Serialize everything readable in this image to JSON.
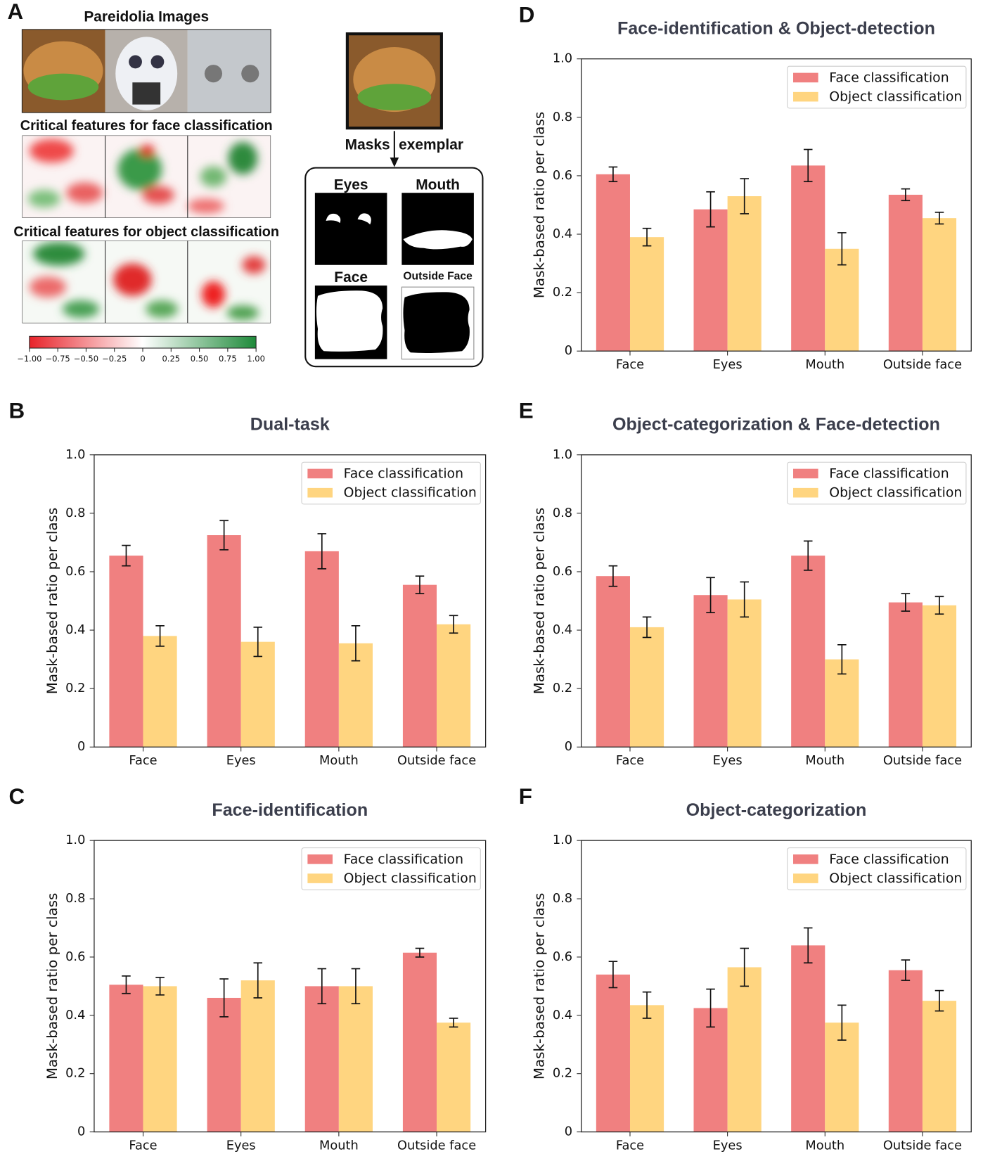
{
  "panel_a": {
    "letter": "A",
    "title": "Pareidolia Images",
    "face_features": "Critical features for face classification",
    "object_features": "Critical features for object classification",
    "colorbar": {
      "xlim": [
        -1,
        1
      ],
      "xticks": [
        {
          "value": -1,
          "label": "−1.00"
        },
        {
          "value": -0.75,
          "label": "−0.75"
        },
        {
          "value": -0.5,
          "label": "−0.50"
        },
        {
          "value": -0.25,
          "label": "−0.25"
        },
        0,
        0.25,
        {
          "value": 0.5,
          "label": "0.50"
        },
        0.75,
        {
          "value": 1,
          "label": "1.00"
        }
      ]
    },
    "masks": {
      "label_left": "Masks",
      "label_right": "exemplar",
      "eyes": "Eyes",
      "mouth": "Mouth",
      "face": "Face",
      "outside_face": "Outside Face"
    }
  },
  "chart_data": [
    {
      "type": "bar",
      "panel": "B",
      "title": "Dual-task",
      "ylabel": "Mask-based ratio per class",
      "categories": [
        "Face",
        "Eyes",
        "Mouth",
        "Outside face"
      ],
      "series": [
        {
          "name": "Face classification",
          "color": "#f08080",
          "values": [
            0.655,
            0.725,
            0.67,
            0.555
          ],
          "errors": [
            0.035,
            0.05,
            0.06,
            0.03
          ]
        },
        {
          "name": "Object classification",
          "color": "#ffd580",
          "values": [
            0.38,
            0.36,
            0.355,
            0.42
          ],
          "errors": [
            0.035,
            0.05,
            0.06,
            0.03
          ]
        }
      ],
      "ylim": [
        0,
        1
      ],
      "yticks": [
        0,
        0.2,
        0.4,
        0.6,
        0.8,
        {
          "value": 1,
          "label": "1.0"
        }
      ],
      "grid": false,
      "legend": "upper right"
    },
    {
      "type": "bar",
      "panel": "C",
      "title": "Face-identification",
      "ylabel": "Mask-based ratio per class",
      "categories": [
        "Face",
        "Eyes",
        "Mouth",
        "Outside face"
      ],
      "series": [
        {
          "name": "Face classification",
          "color": "#f08080",
          "values": [
            0.505,
            0.46,
            0.5,
            0.615
          ],
          "errors": [
            0.03,
            0.065,
            0.06,
            0.015
          ]
        },
        {
          "name": "Object classification",
          "color": "#ffd580",
          "values": [
            0.5,
            0.52,
            0.5,
            0.375
          ],
          "errors": [
            0.03,
            0.06,
            0.06,
            0.015
          ]
        }
      ],
      "ylim": [
        0,
        1
      ],
      "yticks": [
        0,
        0.2,
        0.4,
        0.6,
        0.8,
        {
          "value": 1,
          "label": "1.0"
        }
      ],
      "grid": false,
      "legend": "upper right"
    },
    {
      "type": "bar",
      "panel": "D",
      "title": "Face-identification & Object-detection",
      "ylabel": "Mask-based ratio per class",
      "categories": [
        "Face",
        "Eyes",
        "Mouth",
        "Outside face"
      ],
      "series": [
        {
          "name": "Face classification",
          "color": "#f08080",
          "values": [
            0.605,
            0.485,
            0.635,
            0.535
          ],
          "errors": [
            0.025,
            0.06,
            0.055,
            0.02
          ]
        },
        {
          "name": "Object classification",
          "color": "#ffd580",
          "values": [
            0.39,
            0.53,
            0.35,
            0.455
          ],
          "errors": [
            0.03,
            0.06,
            0.055,
            0.02
          ]
        }
      ],
      "ylim": [
        0,
        1
      ],
      "yticks": [
        0,
        0.2,
        0.4,
        0.6,
        0.8,
        {
          "value": 1,
          "label": "1.0"
        }
      ],
      "grid": false,
      "legend": "upper right"
    },
    {
      "type": "bar",
      "panel": "E",
      "title": "Object-categorization & Face-detection",
      "ylabel": "Mask-based ratio per class",
      "categories": [
        "Face",
        "Eyes",
        "Mouth",
        "Outside face"
      ],
      "series": [
        {
          "name": "Face classification",
          "color": "#f08080",
          "values": [
            0.585,
            0.52,
            0.655,
            0.495
          ],
          "errors": [
            0.035,
            0.06,
            0.05,
            0.03
          ]
        },
        {
          "name": "Object classification",
          "color": "#ffd580",
          "values": [
            0.41,
            0.505,
            0.3,
            0.485
          ],
          "errors": [
            0.035,
            0.06,
            0.05,
            0.03
          ]
        }
      ],
      "ylim": [
        0,
        1
      ],
      "yticks": [
        0,
        0.2,
        0.4,
        0.6,
        0.8,
        {
          "value": 1,
          "label": "1.0"
        }
      ],
      "grid": false,
      "legend": "upper right"
    },
    {
      "type": "bar",
      "panel": "F",
      "title": "Object-categorization",
      "ylabel": "Mask-based ratio per class",
      "categories": [
        "Face",
        "Eyes",
        "Mouth",
        "Outside face"
      ],
      "series": [
        {
          "name": "Face classification",
          "color": "#f08080",
          "values": [
            0.54,
            0.425,
            0.64,
            0.555
          ],
          "errors": [
            0.045,
            0.065,
            0.06,
            0.035
          ]
        },
        {
          "name": "Object classification",
          "color": "#ffd580",
          "values": [
            0.435,
            0.565,
            0.375,
            0.45
          ],
          "errors": [
            0.045,
            0.065,
            0.06,
            0.035
          ]
        }
      ],
      "ylim": [
        0,
        1
      ],
      "yticks": [
        0,
        0.2,
        0.4,
        0.6,
        0.8,
        {
          "value": 1,
          "label": "1.0"
        }
      ],
      "grid": false,
      "legend": "upper right"
    }
  ]
}
